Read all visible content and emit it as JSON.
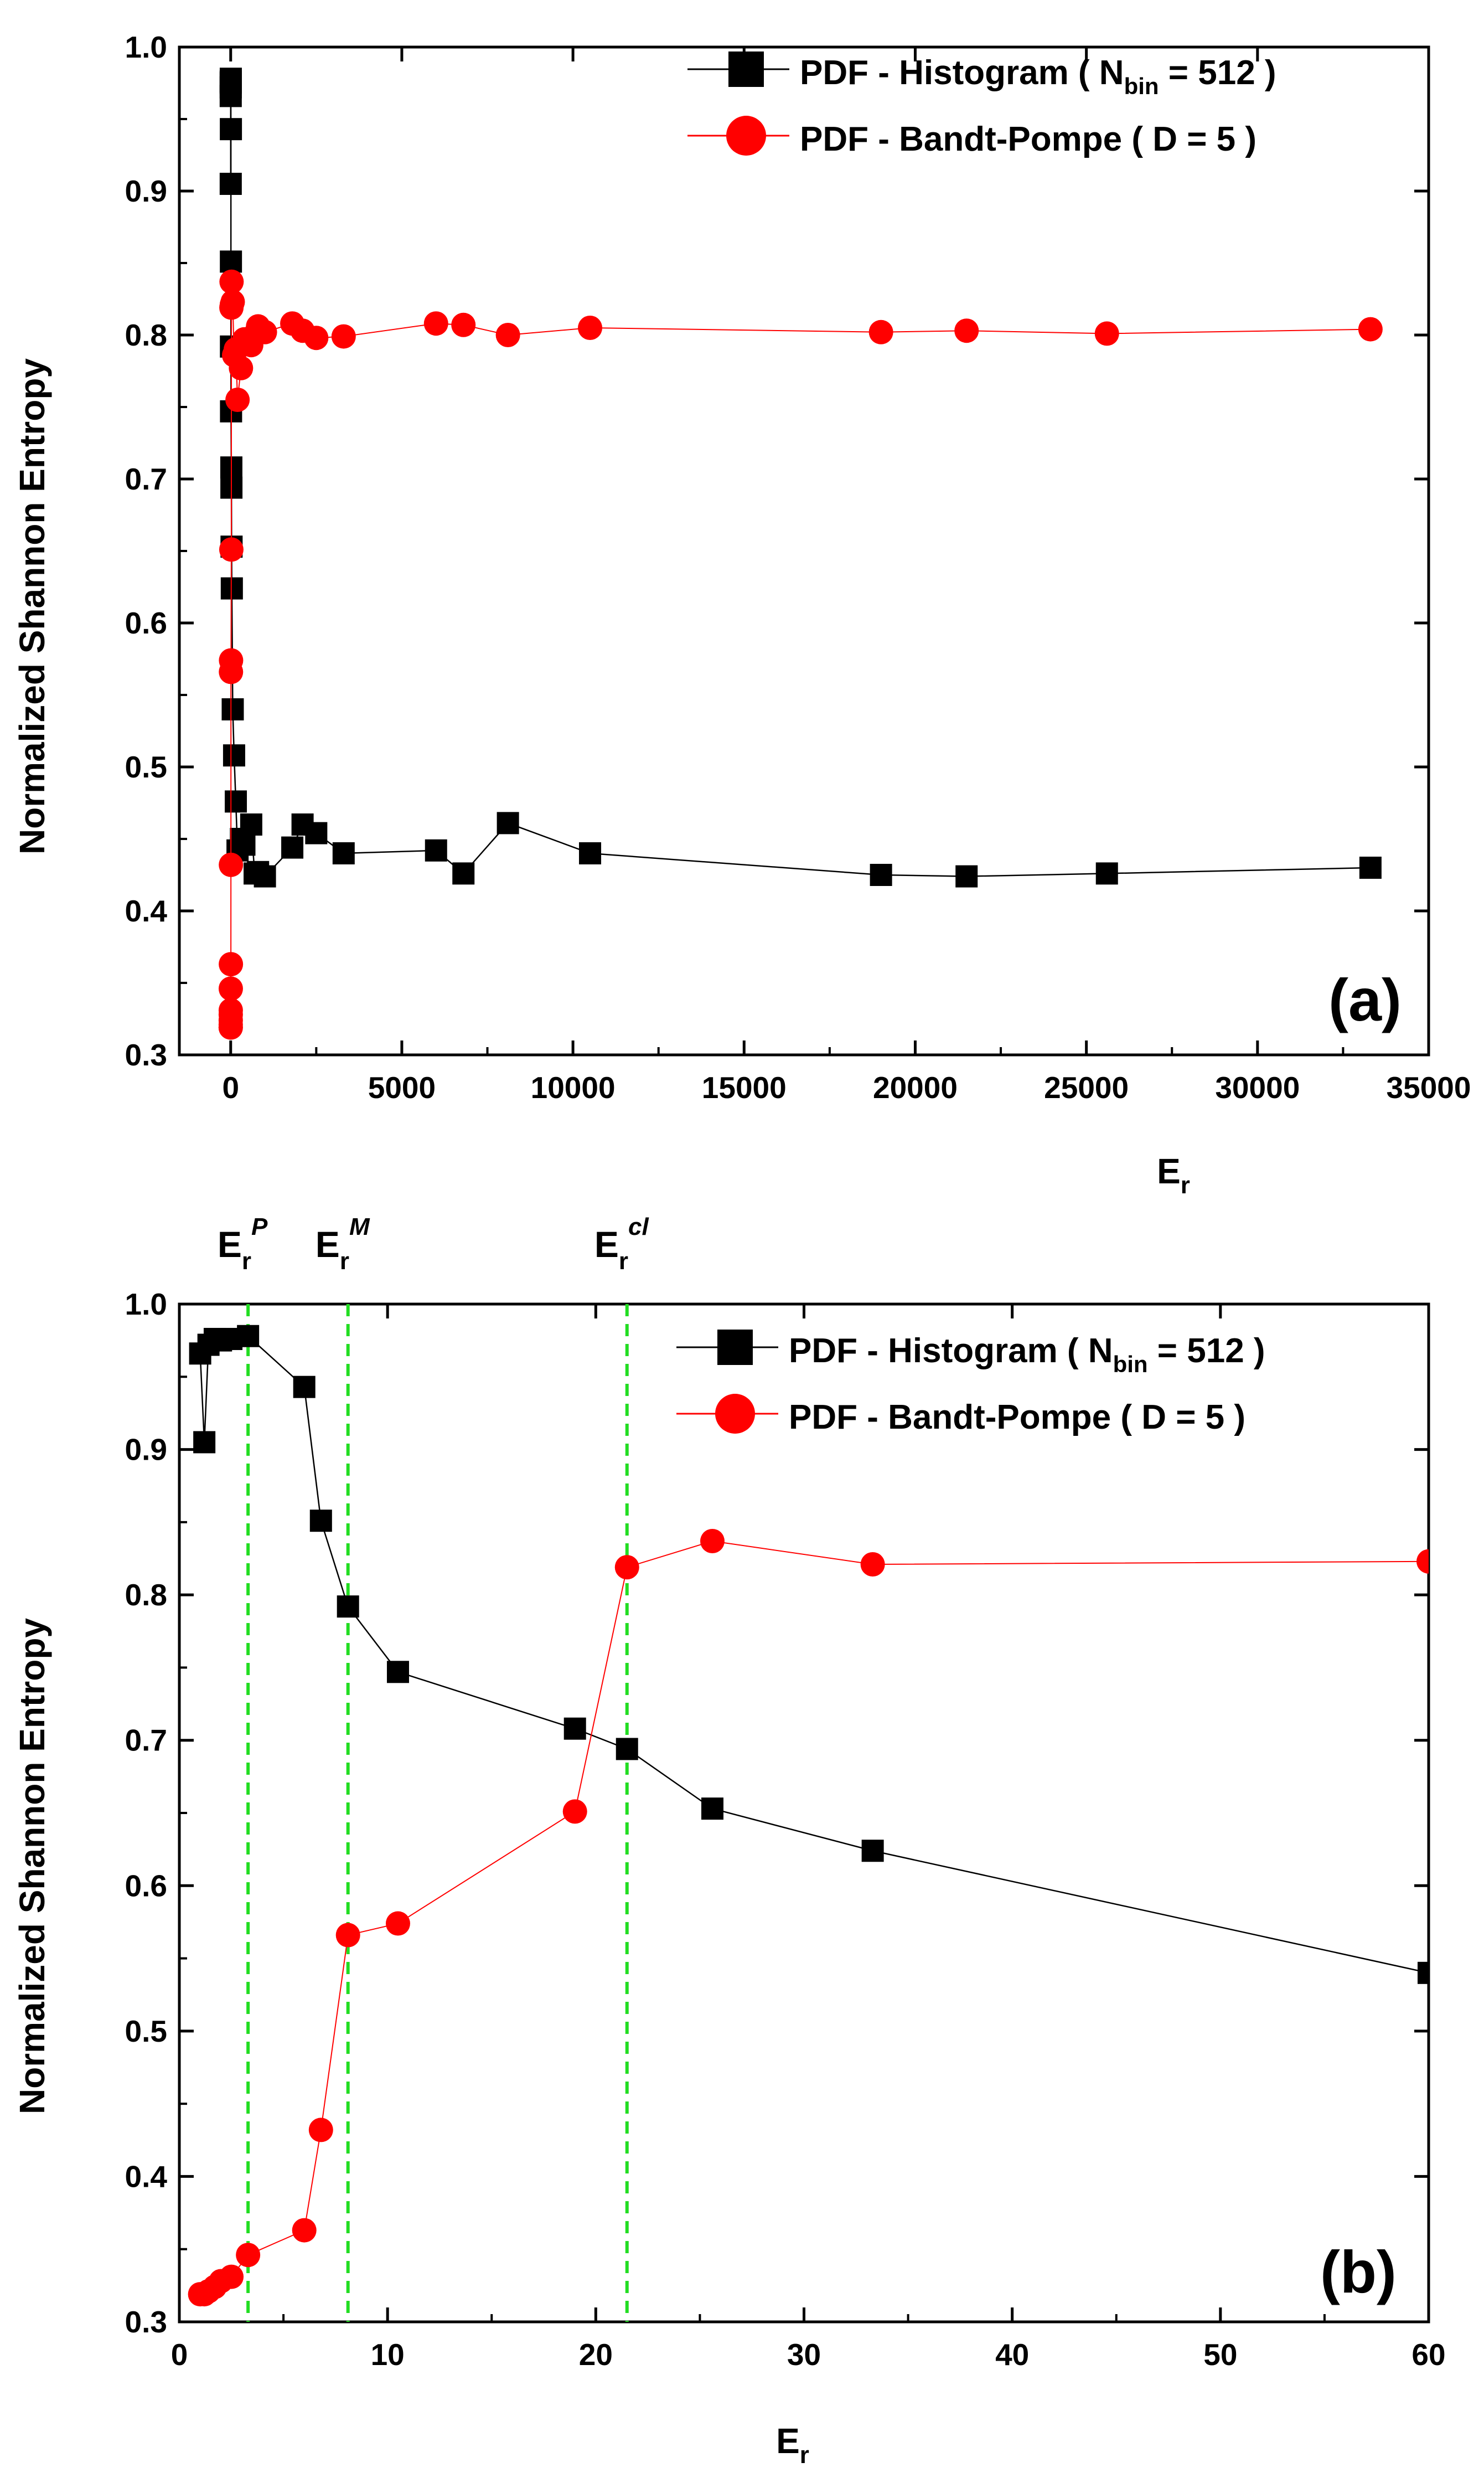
{
  "colors": {
    "histogram": "#000000",
    "bandt_pompe": "#ff0000",
    "marker_line": "#22dd22",
    "axis": "#000000"
  },
  "chart_data": [
    {
      "type": "line",
      "panel_label": "(a)",
      "xlabel": "E",
      "xlabel_sub": "r",
      "ylabel": "Normalized  Shannon  Entropy",
      "xlim": [
        -1500,
        35000
      ],
      "ylim": [
        0.3,
        1.0
      ],
      "xticks": [
        0,
        5000,
        10000,
        15000,
        20000,
        25000,
        30000,
        35000
      ],
      "xtick_labels": [
        "0",
        "5000",
        "10000",
        "15000",
        "20000",
        "25000",
        "30000",
        "35000"
      ],
      "yticks": [
        0.3,
        0.4,
        0.5,
        0.6,
        0.7,
        0.8,
        0.9,
        1.0
      ],
      "ytick_labels": [
        "0.3",
        "0.4",
        "0.5",
        "0.6",
        "0.7",
        "0.8",
        "0.9",
        "1.0"
      ],
      "legend": {
        "position": "top-right",
        "histogram_prefix": "PDF - Histogram ( N",
        "histogram_sub": "bin",
        "histogram_suffix": " = 512 )",
        "bandt_label": "PDF - Bandt-Pompe ( D = 5 )"
      },
      "series": [
        {
          "name": "PDF - Histogram ( Nbin = 512 )",
          "marker": "square",
          "color": "#000000",
          "x": [
            1,
            1.2,
            1.4,
            1.7,
            2,
            2.5,
            3.3,
            6,
            6.8,
            8.1,
            10.5,
            19,
            21.5,
            25.6,
            33.3,
            60,
            100,
            150,
            200,
            300,
            400,
            600,
            700,
            800,
            1000,
            1800,
            2100,
            2500,
            3300,
            6000,
            6800,
            8100,
            10500,
            19000,
            21500,
            25600,
            33300
          ],
          "y": [
            0.966,
            0.905,
            0.972,
            0.976,
            0.975,
            0.976,
            0.978,
            0.943,
            0.851,
            0.792,
            0.747,
            0.708,
            0.694,
            0.653,
            0.624,
            0.54,
            0.508,
            0.476,
            0.442,
            0.45,
            0.446,
            0.46,
            0.426,
            0.427,
            0.424,
            0.444,
            0.46,
            0.454,
            0.44,
            0.442,
            0.426,
            0.461,
            0.44,
            0.425,
            0.424,
            0.426,
            0.43
          ]
        },
        {
          "name": "PDF - Bandt-Pompe ( D = 5 )",
          "marker": "circle",
          "color": "#ff0000",
          "x": [
            1,
            1.2,
            1.4,
            1.7,
            2,
            2.5,
            3.3,
            6,
            6.8,
            8.1,
            10.5,
            19,
            21.5,
            25.6,
            33.3,
            60,
            100,
            150,
            200,
            300,
            400,
            600,
            700,
            800,
            1000,
            1800,
            2100,
            2500,
            3300,
            6000,
            6800,
            8100,
            10500,
            19000,
            21500,
            25600,
            33300
          ],
          "y": [
            0.319,
            0.319,
            0.321,
            0.324,
            0.328,
            0.331,
            0.346,
            0.363,
            0.432,
            0.566,
            0.574,
            0.651,
            0.819,
            0.837,
            0.821,
            0.823,
            0.786,
            0.79,
            0.755,
            0.777,
            0.797,
            0.793,
            0.8,
            0.806,
            0.802,
            0.808,
            0.803,
            0.798,
            0.799,
            0.808,
            0.807,
            0.8,
            0.805,
            0.802,
            0.803,
            0.801,
            0.804
          ]
        }
      ]
    },
    {
      "type": "line",
      "panel_label": "(b)",
      "xlabel": "E",
      "xlabel_sub": "r",
      "ylabel": "Normalized  Shannon  Entropy",
      "xlim": [
        0,
        60
      ],
      "ylim": [
        0.3,
        1.0
      ],
      "xticks": [
        0,
        10,
        20,
        30,
        40,
        50,
        60
      ],
      "xtick_labels": [
        "0",
        "10",
        "20",
        "30",
        "40",
        "50",
        "60"
      ],
      "yticks": [
        0.3,
        0.4,
        0.5,
        0.6,
        0.7,
        0.8,
        0.9,
        1.0
      ],
      "ytick_labels": [
        "0.3",
        "0.4",
        "0.5",
        "0.6",
        "0.7",
        "0.8",
        "0.9",
        "1.0"
      ],
      "legend": {
        "position": "top-right",
        "histogram_prefix": "PDF - Histogram ( N",
        "histogram_sub": "bin",
        "histogram_suffix": " = 512 )",
        "bandt_label": "PDF - Bandt-Pompe ( D = 5 )"
      },
      "vertical_markers": [
        {
          "x": 3.3,
          "label": "E",
          "sub": "r",
          "sup": "P"
        },
        {
          "x": 8.1,
          "label": "E",
          "sub": "r",
          "sup": "M"
        },
        {
          "x": 21.5,
          "label": "E",
          "sub": "r",
          "sup": "cl"
        }
      ],
      "series": [
        {
          "name": "PDF - Histogram ( Nbin = 512 )",
          "marker": "square",
          "color": "#000000",
          "x": [
            1,
            1.2,
            1.4,
            1.7,
            2,
            2.5,
            3.3,
            6,
            6.8,
            8.1,
            10.5,
            19,
            21.5,
            25.6,
            33.3,
            60
          ],
          "y": [
            0.966,
            0.905,
            0.972,
            0.976,
            0.975,
            0.976,
            0.978,
            0.943,
            0.851,
            0.792,
            0.747,
            0.708,
            0.694,
            0.653,
            0.624,
            0.54
          ]
        },
        {
          "name": "PDF - Bandt-Pompe ( D = 5 )",
          "marker": "circle",
          "color": "#ff0000",
          "x": [
            1,
            1.2,
            1.4,
            1.7,
            2,
            2.5,
            3.3,
            6,
            6.8,
            8.1,
            10.5,
            19,
            21.5,
            25.6,
            33.3,
            60
          ],
          "y": [
            0.319,
            0.319,
            0.321,
            0.324,
            0.328,
            0.331,
            0.346,
            0.363,
            0.432,
            0.566,
            0.574,
            0.651,
            0.819,
            0.837,
            0.821,
            0.823
          ]
        }
      ]
    }
  ]
}
